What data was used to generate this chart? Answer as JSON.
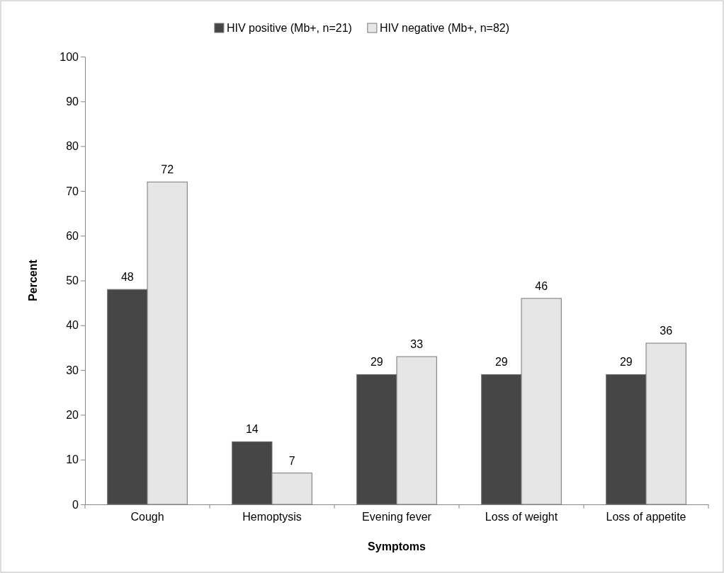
{
  "chart_data": {
    "type": "bar",
    "xlabel": "Symptoms",
    "ylabel": "Percent",
    "categories": [
      "Cough",
      "Hemoptysis",
      "Evening fever",
      "Loss of weight",
      "Loss of appetite"
    ],
    "series": [
      {
        "name": "HIV positive (Mb+, n=21)",
        "color": "#464646",
        "values": [
          48,
          14,
          29,
          29,
          29
        ]
      },
      {
        "name": "HIV negative (Mb+, n=82)",
        "color": "#e6e6e6",
        "values": [
          72,
          7,
          33,
          46,
          36
        ]
      }
    ],
    "ylim": [
      0,
      100
    ],
    "yticks": [
      0,
      10,
      20,
      30,
      40,
      50,
      60,
      70,
      80,
      90,
      100
    ],
    "grid": false,
    "legend": "top",
    "data_labels": true
  }
}
